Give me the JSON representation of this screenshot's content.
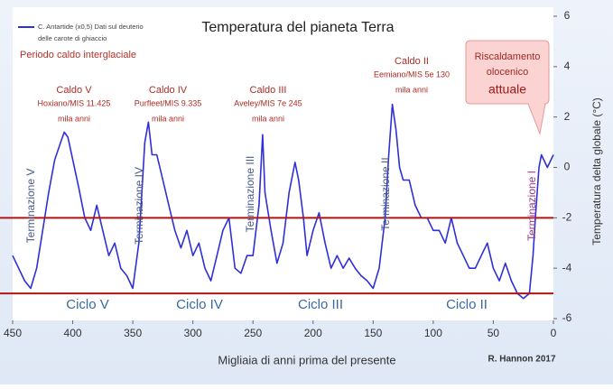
{
  "chart_data": {
    "type": "line",
    "title": "Temperatura del pianeta Terra",
    "x_label": "Migliaia di anni prima del presente",
    "y_label": "Temperatura delta globale (°C)",
    "credit": "R. Hannon 2017",
    "legend_note": "delle carote di ghiaccio",
    "interglacial_label": "Periodo caldo interglaciale",
    "xlim": [
      450,
      0
    ],
    "xticks": [
      450,
      400,
      350,
      300,
      250,
      200,
      150,
      100,
      50,
      0
    ],
    "ylim": [
      -6,
      6
    ],
    "yticks": [
      -6,
      -4,
      -2,
      0,
      2,
      4,
      6
    ],
    "reference_lines": [
      -2,
      -5
    ],
    "reference_color": "#b01515",
    "series": [
      {
        "name": "C. Antartide (x0,5) Dati sul deuterio",
        "color": "#2f2fd8",
        "x": [
          450,
          440,
          435,
          430,
          425,
          420,
          415,
          410,
          407,
          404,
          400,
          395,
          390,
          385,
          380,
          375,
          370,
          365,
          360,
          355,
          350,
          345,
          340,
          337,
          334,
          330,
          325,
          320,
          315,
          310,
          305,
          300,
          295,
          290,
          285,
          280,
          275,
          270,
          265,
          260,
          255,
          250,
          245,
          242,
          240,
          235,
          230,
          225,
          220,
          215,
          212,
          208,
          205,
          200,
          195,
          190,
          185,
          180,
          175,
          170,
          165,
          160,
          155,
          150,
          145,
          140,
          137,
          134,
          131,
          128,
          125,
          120,
          115,
          110,
          105,
          100,
          95,
          90,
          85,
          80,
          75,
          70,
          65,
          60,
          55,
          50,
          45,
          40,
          35,
          30,
          25,
          20,
          17,
          15,
          12,
          10,
          5,
          2,
          0
        ],
        "values": [
          -3.5,
          -4.5,
          -4.8,
          -4.0,
          -2.5,
          -1.0,
          0.3,
          1.0,
          1.4,
          1.2,
          0.3,
          -0.8,
          -2.0,
          -2.5,
          -1.5,
          -2.5,
          -3.5,
          -3.0,
          -4.0,
          -4.3,
          -4.8,
          -3.0,
          1.0,
          1.8,
          0.5,
          0.5,
          -0.5,
          -1.5,
          -2.5,
          -3.2,
          -2.5,
          -3.5,
          -3.0,
          -4.0,
          -4.5,
          -3.5,
          -2.5,
          -2.0,
          -4.0,
          -4.2,
          -3.5,
          -3.5,
          -1.5,
          1.3,
          -1.0,
          -2.5,
          -3.8,
          -3.0,
          -1.0,
          0.2,
          -0.5,
          -2.0,
          -3.5,
          -2.5,
          -1.8,
          -3.0,
          -4.0,
          -3.5,
          -4.0,
          -3.6,
          -4.0,
          -4.3,
          -4.5,
          -4.8,
          -4.0,
          -2.0,
          0.5,
          2.5,
          1.5,
          0.0,
          -0.5,
          -0.5,
          -1.5,
          -2.0,
          -2.0,
          -2.5,
          -2.5,
          -3.0,
          -2.0,
          -3.0,
          -3.5,
          -4.0,
          -4.0,
          -3.5,
          -3.0,
          -4.0,
          -4.5,
          -3.8,
          -4.5,
          -5.0,
          -5.2,
          -5.0,
          -3.5,
          -2.0,
          0.0,
          0.5,
          0.0,
          0.3,
          0.5
        ]
      }
    ],
    "annotations": [
      {
        "lines": [
          "Caldo V",
          "Hoxiano/MIS 11.425",
          "mila anni"
        ]
      },
      {
        "lines": [
          "Caldo IV",
          "Purfleet/MIS 9.335",
          "mila anni"
        ]
      },
      {
        "lines": [
          "Caldo III",
          "Aveley/MIS 7e 245",
          "mila anni"
        ]
      },
      {
        "lines": [
          "Caldo II",
          "Eemiano/MIS 5e 130",
          "mila anni"
        ]
      }
    ],
    "terminations": [
      "Terminazione V",
      "Terminazione IV",
      "Terminazione III",
      "Terminazione II",
      "Terminazione I"
    ],
    "cycles": [
      "Ciclo V",
      "Ciclo IV",
      "Ciclo III",
      "Ciclo II"
    ],
    "callout": [
      "Riscaldamento",
      "olocenico",
      "attuale"
    ]
  }
}
